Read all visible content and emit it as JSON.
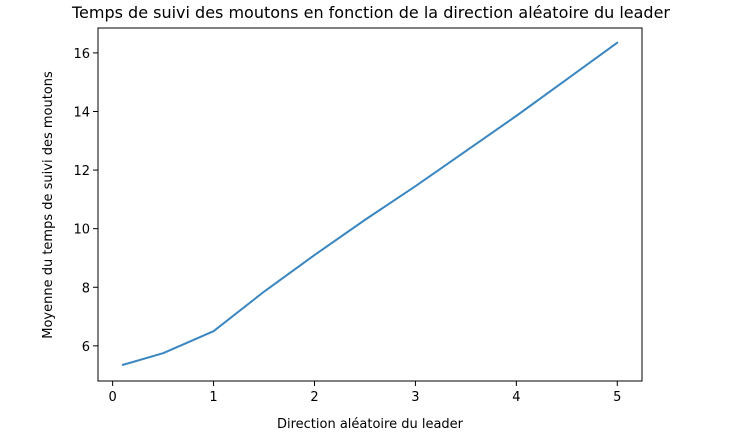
{
  "chart_data": {
    "type": "line",
    "title": "Temps de suivi des moutons en fonction de la direction aléatoire du leader",
    "xlabel": "Direction aléatoire du leader",
    "ylabel": "Moyenne du temps de suivi des moutons",
    "xlim": [
      -0.145,
      5.245
    ],
    "ylim": [
      4.8,
      16.85
    ],
    "xticks": [
      0,
      1,
      2,
      3,
      4,
      5
    ],
    "yticks": [
      6,
      8,
      10,
      12,
      14,
      16
    ],
    "grid": false,
    "series": [
      {
        "color": "#3a86c0",
        "x": [
          0.1,
          0.5,
          1.0,
          1.5,
          2.0,
          2.5,
          3.0,
          3.5,
          4.0,
          4.5,
          5.0
        ],
        "y": [
          5.35,
          5.75,
          6.5,
          7.85,
          9.1,
          10.3,
          11.45,
          12.65,
          13.85,
          15.1,
          16.35
        ]
      }
    ]
  }
}
